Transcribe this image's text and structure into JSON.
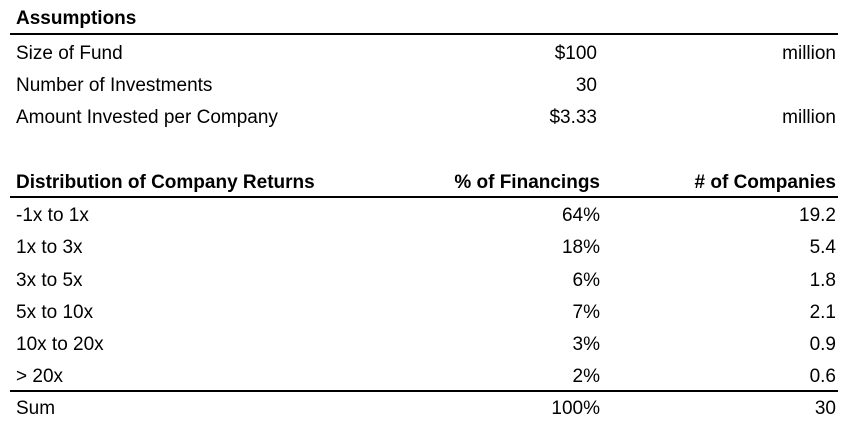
{
  "assumptions": {
    "title": "Assumptions",
    "rows": [
      {
        "label": "Size of Fund",
        "value": "$100",
        "unit": "million"
      },
      {
        "label": "Number of Investments",
        "value": "30",
        "unit": ""
      },
      {
        "label": "Amount Invested per Company",
        "value": "$3.33",
        "unit": "million"
      }
    ]
  },
  "distribution": {
    "headers": {
      "category": "Distribution of Company Returns",
      "pct": "% of Financings",
      "count": "# of Companies"
    },
    "rows": [
      {
        "label": "-1x to 1x",
        "pct": "64%",
        "count": "19.2"
      },
      {
        "label": "1x to 3x",
        "pct": "18%",
        "count": "5.4"
      },
      {
        "label": "3x to 5x",
        "pct": "6%",
        "count": "1.8"
      },
      {
        "label": "5x to 10x",
        "pct": "7%",
        "count": "2.1"
      },
      {
        "label": "10x to 20x",
        "pct": "3%",
        "count": "0.9"
      },
      {
        "label": "> 20x",
        "pct": "2%",
        "count": "0.6"
      }
    ],
    "sum": {
      "label": "Sum",
      "pct": "100%",
      "count": "30"
    }
  }
}
